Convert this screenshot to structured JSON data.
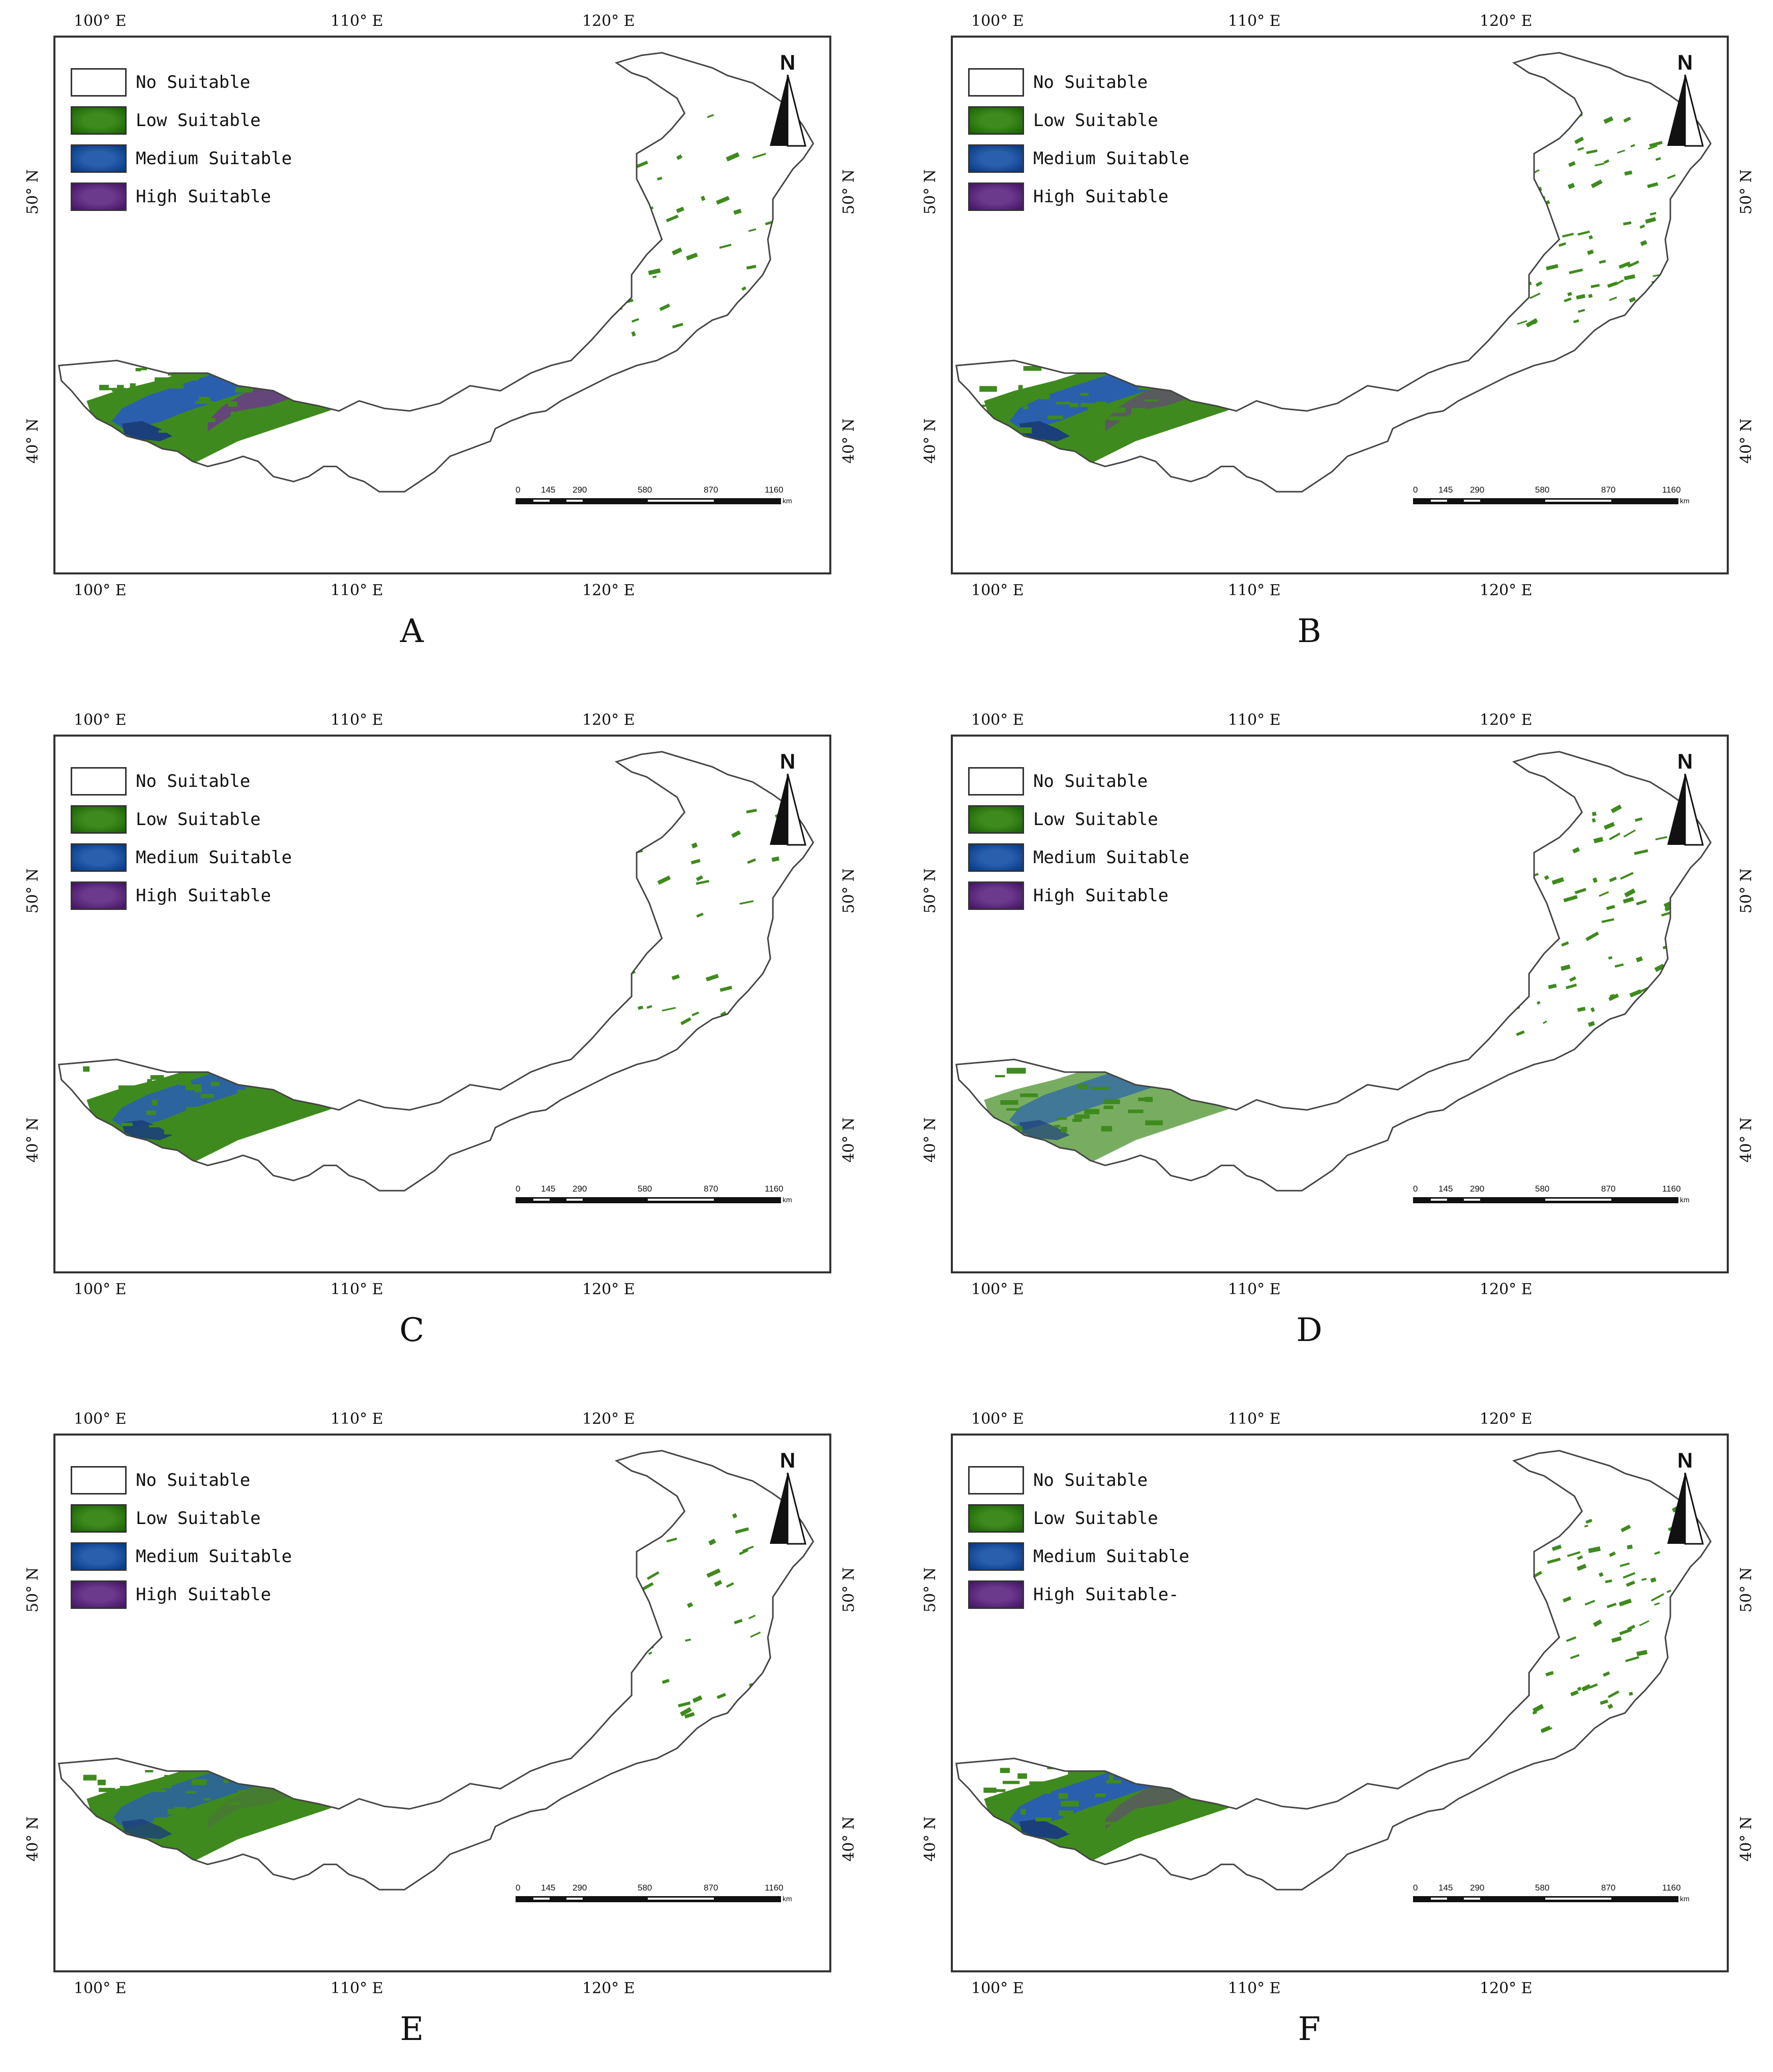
{
  "figure": {
    "panels": [
      {
        "label": "A",
        "variant": 0
      },
      {
        "label": "B",
        "variant": 1
      },
      {
        "label": "C",
        "variant": 2
      },
      {
        "label": "D",
        "variant": 3
      },
      {
        "label": "E",
        "variant": 4
      },
      {
        "label": "F",
        "variant": 5
      }
    ],
    "legend_items": [
      {
        "label": "No Suitable",
        "color": "#ffffff"
      },
      {
        "label": "Low Suitable",
        "color": "#3f8a1e"
      },
      {
        "label": "Medium Suitable",
        "color": "#2a5fae"
      },
      {
        "label": "High Suitable",
        "color": "#6b3a8c"
      }
    ],
    "legend_items_F_last": "High Suitable-",
    "lon_ticks": [
      "100° E",
      "110° E",
      "120° E"
    ],
    "lat_ticks": [
      "50° N",
      "40° N"
    ],
    "north_label": "N",
    "scale_labels": [
      "0",
      "145",
      "290",
      "580",
      "870",
      "1160"
    ],
    "scale_unit": "km"
  }
}
